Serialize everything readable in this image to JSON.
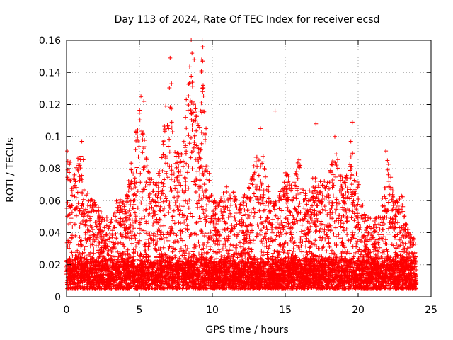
{
  "chart_data": {
    "type": "scatter",
    "title": "Day 113 of 2024, Rate Of TEC Index for receiver ecsd",
    "xlabel": "GPS time / hours",
    "ylabel": "ROTI / TECUs",
    "xlim": [
      0,
      25
    ],
    "ylim": [
      0,
      0.16
    ],
    "x_ticks": [
      "0",
      "5",
      "10",
      "15",
      "20",
      "25"
    ],
    "y_ticks": [
      "0",
      "0.02",
      "0.04",
      "0.06",
      "0.08",
      "0.1",
      "0.12",
      "0.14",
      "0.16"
    ],
    "grid": true,
    "legend": "none",
    "marker": "plus",
    "color": "#ff0000",
    "x_range_of_data": [
      0,
      24
    ],
    "baseline_band": [
      0.005,
      0.02
    ],
    "notable_peaks": [
      {
        "x": 0.05,
        "y": 0.091
      },
      {
        "x": 0.25,
        "y": 0.084
      },
      {
        "x": 1.05,
        "y": 0.097
      },
      {
        "x": 5.1,
        "y": 0.125
      },
      {
        "x": 5.3,
        "y": 0.122
      },
      {
        "x": 6.8,
        "y": 0.119
      },
      {
        "x": 7.1,
        "y": 0.149
      },
      {
        "x": 7.2,
        "y": 0.133
      },
      {
        "x": 8.55,
        "y": 0.16
      },
      {
        "x": 8.6,
        "y": 0.152
      },
      {
        "x": 8.75,
        "y": 0.148
      },
      {
        "x": 9.3,
        "y": 0.16
      },
      {
        "x": 9.35,
        "y": 0.156
      },
      {
        "x": 9.25,
        "y": 0.141
      },
      {
        "x": 9.3,
        "y": 0.13
      },
      {
        "x": 13.3,
        "y": 0.105
      },
      {
        "x": 14.3,
        "y": 0.116
      },
      {
        "x": 17.1,
        "y": 0.108
      },
      {
        "x": 18.4,
        "y": 0.1
      },
      {
        "x": 19.6,
        "y": 0.109
      },
      {
        "x": 19.5,
        "y": 0.097
      },
      {
        "x": 21.9,
        "y": 0.091
      }
    ],
    "envelope": [
      {
        "x": 0,
        "y": 0.09
      },
      {
        "x": 0.5,
        "y": 0.078
      },
      {
        "x": 1,
        "y": 0.096
      },
      {
        "x": 1.5,
        "y": 0.062
      },
      {
        "x": 2,
        "y": 0.06
      },
      {
        "x": 2.5,
        "y": 0.052
      },
      {
        "x": 3,
        "y": 0.048
      },
      {
        "x": 3.5,
        "y": 0.065
      },
      {
        "x": 4,
        "y": 0.058
      },
      {
        "x": 4.5,
        "y": 0.088
      },
      {
        "x": 5,
        "y": 0.12
      },
      {
        "x": 5.5,
        "y": 0.09
      },
      {
        "x": 6,
        "y": 0.07
      },
      {
        "x": 6.5,
        "y": 0.09
      },
      {
        "x": 7,
        "y": 0.14
      },
      {
        "x": 7.5,
        "y": 0.088
      },
      {
        "x": 8,
        "y": 0.1
      },
      {
        "x": 8.5,
        "y": 0.155
      },
      {
        "x": 9,
        "y": 0.11
      },
      {
        "x": 9.3,
        "y": 0.155
      },
      {
        "x": 9.7,
        "y": 0.085
      },
      {
        "x": 10,
        "y": 0.062
      },
      {
        "x": 10.5,
        "y": 0.06
      },
      {
        "x": 11,
        "y": 0.074
      },
      {
        "x": 11.5,
        "y": 0.066
      },
      {
        "x": 12,
        "y": 0.06
      },
      {
        "x": 12.5,
        "y": 0.07
      },
      {
        "x": 13,
        "y": 0.09
      },
      {
        "x": 13.5,
        "y": 0.088
      },
      {
        "x": 14,
        "y": 0.06
      },
      {
        "x": 14.5,
        "y": 0.06
      },
      {
        "x": 15,
        "y": 0.08
      },
      {
        "x": 15.5,
        "y": 0.07
      },
      {
        "x": 16,
        "y": 0.09
      },
      {
        "x": 16.5,
        "y": 0.06
      },
      {
        "x": 17,
        "y": 0.08
      },
      {
        "x": 17.5,
        "y": 0.07
      },
      {
        "x": 18,
        "y": 0.08
      },
      {
        "x": 18.5,
        "y": 0.09
      },
      {
        "x": 19,
        "y": 0.07
      },
      {
        "x": 19.5,
        "y": 0.1
      },
      {
        "x": 20,
        "y": 0.072
      },
      {
        "x": 20.5,
        "y": 0.05
      },
      {
        "x": 21,
        "y": 0.05
      },
      {
        "x": 21.5,
        "y": 0.05
      },
      {
        "x": 22,
        "y": 0.088
      },
      {
        "x": 22.5,
        "y": 0.06
      },
      {
        "x": 23,
        "y": 0.065
      },
      {
        "x": 23.5,
        "y": 0.04
      },
      {
        "x": 24,
        "y": 0.035
      }
    ]
  }
}
